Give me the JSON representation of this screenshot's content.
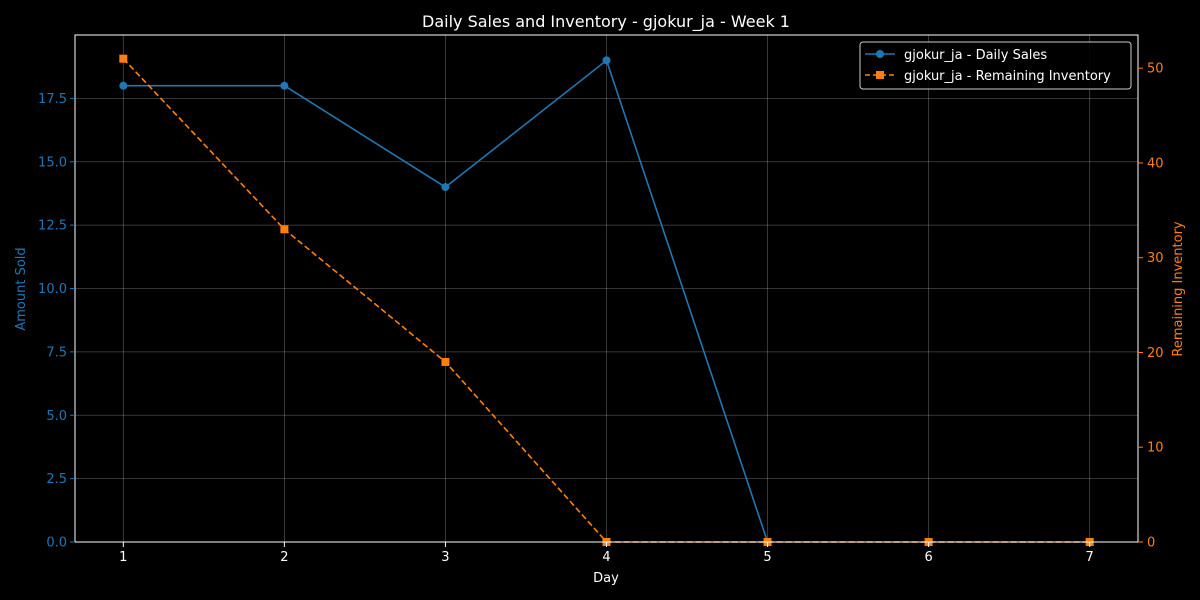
{
  "chart_data": {
    "type": "line",
    "title": "Daily Sales and Inventory - gjokur_ja - Week 1",
    "xlabel": "Day",
    "ylabel_left": "Amount Sold",
    "ylabel_right": "Remaining Inventory",
    "x": [
      1,
      2,
      3,
      4,
      5,
      6,
      7
    ],
    "xlim": [
      0.7,
      7.3
    ],
    "ylim_left": [
      0,
      20
    ],
    "ylim_right": [
      0,
      53.5
    ],
    "yticks_left": [
      "0.0",
      "2.5",
      "5.0",
      "7.5",
      "10.0",
      "12.5",
      "15.0",
      "17.5"
    ],
    "yticks_right": [
      "0",
      "10",
      "20",
      "30",
      "40",
      "50"
    ],
    "grid": true,
    "legend_position": "top-right",
    "series": [
      {
        "name": "gjokur_ja - Daily Sales",
        "axis": "left",
        "color": "#1f77b4",
        "marker": "circle",
        "linestyle": "solid",
        "values": [
          18,
          18,
          14,
          19,
          0,
          null,
          null
        ]
      },
      {
        "name": "gjokur_ja - Remaining Inventory",
        "axis": "right",
        "color": "#ff7f0e",
        "marker": "square",
        "linestyle": "dashed",
        "values": [
          51,
          33,
          19,
          0,
          0,
          0,
          0
        ]
      }
    ]
  }
}
